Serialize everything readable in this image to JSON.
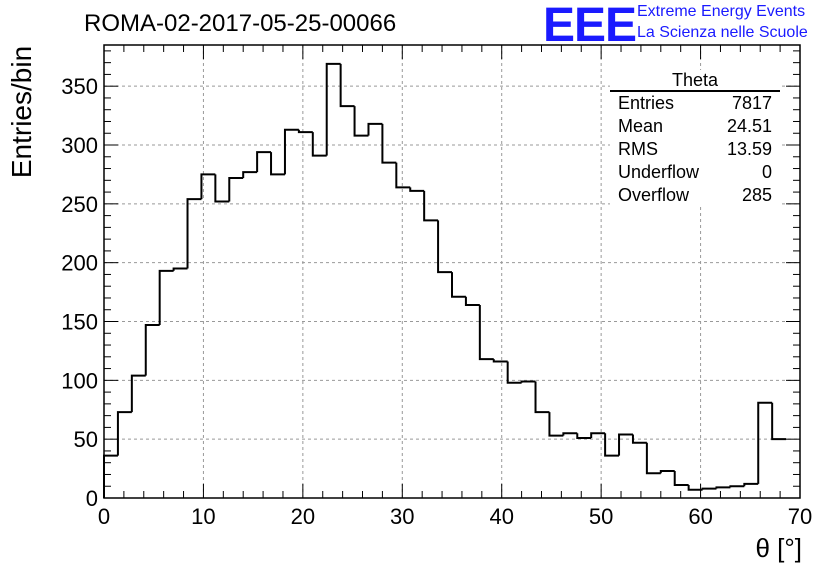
{
  "header": {
    "run_title": "ROMA-02-2017-05-25-00066",
    "logo_text": "EEE",
    "logo_line1": "Extreme Energy Events",
    "logo_line2": "La Scienza nelle Scuole",
    "brand_color": "#1a1aff"
  },
  "stats_box": {
    "title": "Theta",
    "rows": [
      {
        "label": "Entries",
        "value": "7817"
      },
      {
        "label": "Mean",
        "value": "24.51"
      },
      {
        "label": "RMS",
        "value": "13.59"
      },
      {
        "label": "Underflow",
        "value": "0"
      },
      {
        "label": "Overflow",
        "value": "285"
      }
    ]
  },
  "chart_data": {
    "type": "bar",
    "style": "step-histogram",
    "xlabel": "θ [°]",
    "ylabel": "Entries/bin",
    "xlim": [
      0,
      70
    ],
    "ylim": [
      0,
      385
    ],
    "grid": true,
    "legend": "top-right stats box",
    "bin_width": 1.4,
    "x_ticks": [
      0,
      10,
      20,
      30,
      40,
      50,
      60,
      70
    ],
    "y_ticks": [
      0,
      50,
      100,
      150,
      200,
      250,
      300,
      350
    ],
    "values": [
      36,
      73,
      104,
      147,
      193,
      195,
      254,
      275,
      252,
      272,
      277,
      294,
      275,
      313,
      311,
      291,
      369,
      333,
      308,
      318,
      285,
      264,
      261,
      236,
      192,
      171,
      164,
      118,
      116,
      98,
      99,
      73,
      53,
      55,
      51,
      55,
      36,
      54,
      47,
      21,
      23,
      11,
      7,
      8,
      9,
      10,
      12,
      81,
      50
    ]
  }
}
